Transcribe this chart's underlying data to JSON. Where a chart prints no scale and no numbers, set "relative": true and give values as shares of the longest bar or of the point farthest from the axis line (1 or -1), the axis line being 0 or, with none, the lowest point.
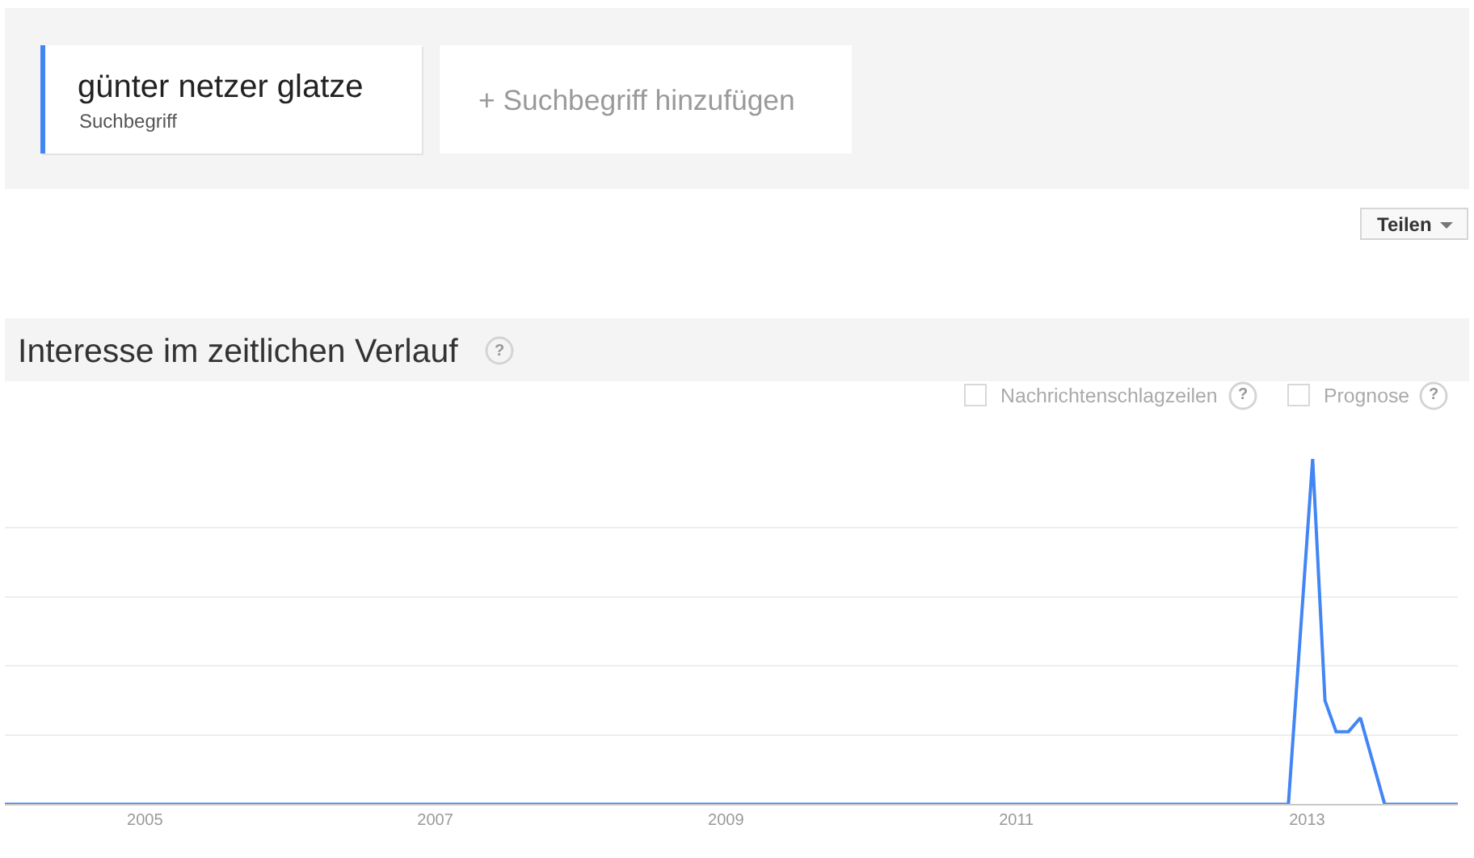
{
  "chart_data": {
    "type": "line",
    "title": "Interesse im zeitlichen Verlauf",
    "x": [
      "2004-01-15",
      "2012-11-15",
      "2013-01-15",
      "2013-02-15",
      "2013-03-15",
      "2013-04-15",
      "2013-05-15",
      "2013-07-15",
      "2014-01-15"
    ],
    "series": [
      {
        "name": "günter netzer glatze",
        "color": "#4285f4",
        "values": [
          0,
          0,
          1,
          0.3,
          0.21,
          0.21,
          0.25,
          0,
          0
        ]
      }
    ],
    "relative": true,
    "xlim": [
      "2004-01-15",
      "2014-01-15"
    ],
    "xticks": [
      "2005",
      "2007",
      "2009",
      "2011",
      "2013"
    ],
    "grid": "y",
    "legend": "top left",
    "tick_labels": "x",
    "annotations": [
      "Suchbegriff",
      "+ Suchbegriff hinzufügen",
      "Teilen",
      "?",
      "Nachrichtenschlagzeilen",
      "?",
      "Prognose",
      "?"
    ]
  }
}
